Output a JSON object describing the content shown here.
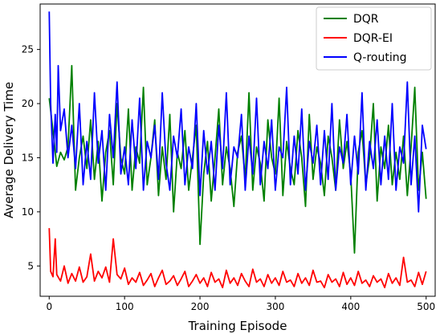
{
  "chart_data": {
    "type": "line",
    "title": "",
    "xlabel": "Training Episode",
    "ylabel": "Average Delivery Time",
    "xlim": [
      -12,
      512
    ],
    "ylim": [
      2.2,
      29.2
    ],
    "xticks": [
      0,
      100,
      200,
      300,
      400,
      500
    ],
    "yticks": [
      5,
      10,
      15,
      20,
      25
    ],
    "legend_position": "top-right",
    "grid": false,
    "series": [
      {
        "name": "DQR",
        "color": "#008000",
        "x": [
          0,
          5,
          10,
          15,
          20,
          25,
          30,
          35,
          40,
          45,
          50,
          55,
          60,
          65,
          70,
          75,
          80,
          85,
          90,
          95,
          100,
          105,
          110,
          115,
          120,
          125,
          130,
          135,
          140,
          145,
          150,
          155,
          160,
          165,
          170,
          175,
          180,
          185,
          190,
          195,
          200,
          205,
          210,
          215,
          220,
          225,
          230,
          235,
          240,
          245,
          250,
          255,
          260,
          265,
          270,
          275,
          280,
          285,
          290,
          295,
          300,
          305,
          310,
          315,
          320,
          325,
          330,
          335,
          340,
          345,
          350,
          355,
          360,
          365,
          370,
          375,
          380,
          385,
          390,
          395,
          400,
          405,
          410,
          415,
          420,
          425,
          430,
          435,
          440,
          445,
          450,
          455,
          460,
          465,
          470,
          475,
          480,
          485,
          490,
          495,
          500
        ],
        "y": [
          20.5,
          17.5,
          14.2,
          15.5,
          14.8,
          16.0,
          23.5,
          12.0,
          15.0,
          17.0,
          14.0,
          18.5,
          13.0,
          16.5,
          11.0,
          15.5,
          17.5,
          12.5,
          20.0,
          15.0,
          13.5,
          19.5,
          12.0,
          16.0,
          14.5,
          21.5,
          12.5,
          15.0,
          18.5,
          11.5,
          16.0,
          13.0,
          19.0,
          10.0,
          15.5,
          14.0,
          17.5,
          12.0,
          15.0,
          18.0,
          7.0,
          13.5,
          16.5,
          11.0,
          15.0,
          19.5,
          12.5,
          16.0,
          14.0,
          10.5,
          15.5,
          17.0,
          13.0,
          21.0,
          12.0,
          16.0,
          14.5,
          11.0,
          18.5,
          15.0,
          13.5,
          20.5,
          11.5,
          16.5,
          14.0,
          12.5,
          17.5,
          15.0,
          10.5,
          19.0,
          13.0,
          16.0,
          14.5,
          11.5,
          17.0,
          15.0,
          12.0,
          18.5,
          14.0,
          16.5,
          13.5,
          6.2,
          15.5,
          17.5,
          12.5,
          15.0,
          20.0,
          11.0,
          16.0,
          14.0,
          18.0,
          12.5,
          15.5,
          13.0,
          17.0,
          11.5,
          16.0,
          21.5,
          12.0,
          15.5,
          11.2
        ]
      },
      {
        "name": "DQR-EI",
        "color": "#ff0000",
        "x": [
          0,
          2,
          5,
          8,
          10,
          15,
          20,
          25,
          30,
          35,
          40,
          45,
          50,
          55,
          60,
          65,
          70,
          75,
          80,
          85,
          90,
          95,
          100,
          105,
          110,
          115,
          120,
          125,
          130,
          135,
          140,
          145,
          150,
          155,
          160,
          165,
          170,
          175,
          180,
          185,
          190,
          195,
          200,
          205,
          210,
          215,
          220,
          225,
          230,
          235,
          240,
          245,
          250,
          255,
          260,
          265,
          270,
          275,
          280,
          285,
          290,
          295,
          300,
          305,
          310,
          315,
          320,
          325,
          330,
          335,
          340,
          345,
          350,
          355,
          360,
          365,
          370,
          375,
          380,
          385,
          390,
          395,
          400,
          405,
          410,
          415,
          420,
          425,
          430,
          435,
          440,
          445,
          450,
          455,
          460,
          465,
          470,
          475,
          480,
          485,
          490,
          495,
          500
        ],
        "y": [
          8.5,
          4.5,
          4.0,
          7.5,
          4.2,
          3.6,
          5.0,
          3.4,
          4.3,
          3.6,
          4.9,
          3.5,
          4.0,
          6.1,
          3.6,
          4.5,
          3.9,
          4.9,
          3.5,
          7.5,
          4.2,
          3.8,
          4.8,
          3.3,
          3.9,
          3.5,
          4.4,
          3.2,
          3.7,
          4.3,
          3.1,
          3.9,
          4.6,
          3.3,
          3.6,
          4.1,
          3.2,
          3.8,
          4.5,
          3.1,
          3.6,
          4.2,
          3.4,
          3.9,
          3.1,
          4.4,
          3.5,
          3.8,
          3.0,
          4.6,
          3.4,
          3.9,
          3.2,
          4.3,
          3.6,
          3.1,
          4.7,
          3.5,
          3.8,
          3.1,
          4.2,
          3.4,
          3.9,
          3.2,
          4.5,
          3.5,
          3.7,
          3.1,
          4.3,
          3.4,
          3.9,
          3.2,
          4.6,
          3.5,
          3.6,
          3.0,
          4.2,
          3.5,
          3.8,
          3.1,
          4.4,
          3.3,
          3.9,
          3.2,
          4.5,
          3.4,
          3.7,
          3.1,
          4.1,
          3.5,
          3.8,
          3.0,
          4.3,
          3.4,
          3.9,
          3.2,
          5.8,
          3.5,
          3.7,
          3.1,
          4.4,
          3.3,
          4.5
        ]
      },
      {
        "name": "Q-routing",
        "color": "#0000ff",
        "x": [
          0,
          2,
          5,
          8,
          10,
          12,
          15,
          20,
          25,
          30,
          35,
          40,
          45,
          50,
          55,
          60,
          65,
          70,
          75,
          80,
          85,
          90,
          95,
          100,
          105,
          110,
          115,
          120,
          125,
          130,
          135,
          140,
          145,
          150,
          155,
          160,
          165,
          170,
          175,
          180,
          185,
          190,
          195,
          200,
          205,
          210,
          215,
          220,
          225,
          230,
          235,
          240,
          245,
          250,
          255,
          260,
          265,
          270,
          275,
          280,
          285,
          290,
          295,
          300,
          305,
          310,
          315,
          320,
          325,
          330,
          335,
          340,
          345,
          350,
          355,
          360,
          365,
          370,
          375,
          380,
          385,
          390,
          395,
          400,
          405,
          410,
          415,
          420,
          425,
          430,
          435,
          440,
          445,
          450,
          455,
          460,
          465,
          470,
          475,
          480,
          485,
          490,
          495,
          500
        ],
        "y": [
          28.5,
          20.0,
          14.5,
          19.0,
          15.5,
          23.5,
          17.5,
          19.5,
          15.0,
          18.0,
          14.0,
          20.0,
          12.5,
          16.5,
          13.0,
          21.0,
          14.5,
          17.5,
          12.0,
          19.0,
          15.0,
          22.0,
          13.5,
          16.0,
          12.5,
          18.5,
          14.0,
          20.5,
          12.0,
          16.5,
          15.0,
          18.0,
          13.0,
          21.0,
          14.5,
          12.0,
          17.0,
          15.0,
          19.5,
          12.5,
          16.0,
          14.0,
          20.0,
          11.5,
          17.5,
          13.5,
          16.5,
          12.0,
          18.0,
          14.0,
          21.0,
          12.5,
          16.0,
          15.0,
          19.0,
          12.0,
          17.0,
          13.5,
          20.5,
          12.5,
          16.5,
          14.0,
          18.5,
          12.0,
          16.0,
          15.0,
          21.5,
          12.5,
          17.0,
          13.5,
          19.5,
          12.0,
          16.5,
          14.5,
          18.0,
          12.5,
          17.5,
          13.0,
          20.0,
          12.0,
          16.0,
          14.5,
          19.0,
          12.5,
          17.0,
          13.5,
          21.0,
          12.0,
          16.5,
          14.0,
          18.5,
          12.5,
          17.0,
          13.0,
          20.0,
          12.0,
          16.0,
          14.5,
          22.0,
          12.5,
          17.0,
          10.0,
          18.0,
          15.8
        ]
      }
    ]
  }
}
